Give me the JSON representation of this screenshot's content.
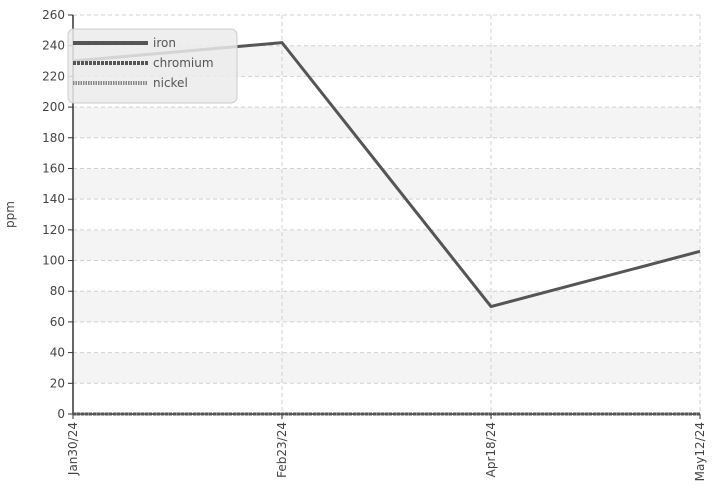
{
  "chart_data": {
    "type": "line",
    "ylabel": "ppm",
    "ylim": [
      0,
      260
    ],
    "y_ticks": [
      "0",
      "20",
      "40",
      "60",
      "80",
      "100",
      "120",
      "140",
      "160",
      "180",
      "200",
      "220",
      "240",
      "260"
    ],
    "categories": [
      "Jan30/24",
      "Feb23/24",
      "Apr18/24",
      "May12/24"
    ],
    "grid": true,
    "legend_position": "top-left",
    "series": [
      {
        "name": "iron",
        "values": [
          230,
          242,
          70,
          106
        ],
        "color": "#555555",
        "style": "solid"
      },
      {
        "name": "chromium",
        "values": [
          0,
          0,
          0,
          0
        ],
        "color": "#555555",
        "style": "dashed"
      },
      {
        "name": "nickel",
        "values": [
          0,
          0,
          0,
          0
        ],
        "color": "#888888",
        "style": "dotted"
      }
    ]
  }
}
